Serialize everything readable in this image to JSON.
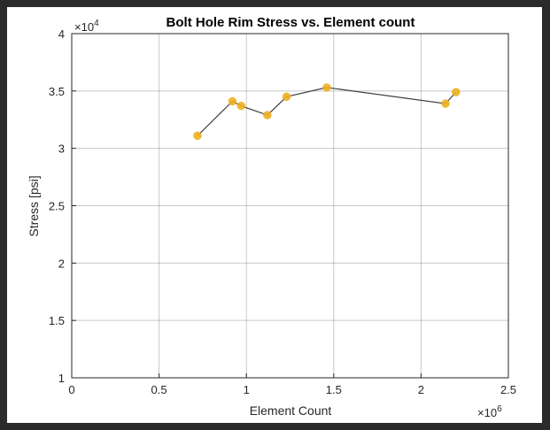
{
  "chart_data": {
    "type": "line",
    "title": "Bolt Hole Rim Stress vs. Element count",
    "xlabel": "Element Count",
    "ylabel": "Stress [psi]",
    "x_multiplier_base": "×10",
    "x_multiplier_exp": "6",
    "y_multiplier_base": "×10",
    "y_multiplier_exp": "4",
    "xlim": [
      0,
      2.5
    ],
    "ylim": [
      1,
      4
    ],
    "xticks": [
      0,
      0.5,
      1,
      1.5,
      2,
      2.5
    ],
    "yticks": [
      1,
      1.5,
      2,
      2.5,
      3,
      3.5,
      4
    ],
    "xtick_labels": [
      "0",
      "0.5",
      "1",
      "1.5",
      "2",
      "2.5"
    ],
    "ytick_labels": [
      "1",
      "1.5",
      "2",
      "2.5",
      "3",
      "3.5",
      "4"
    ],
    "grid": true,
    "line_color": "#404040",
    "marker_color": "#EDB120",
    "series": [
      {
        "x": [
          0.72,
          0.92,
          0.97,
          1.12,
          1.23,
          1.46,
          2.14,
          2.2
        ],
        "y": [
          3.11,
          3.41,
          3.37,
          3.29,
          3.45,
          3.53,
          3.39,
          3.49
        ]
      }
    ]
  }
}
